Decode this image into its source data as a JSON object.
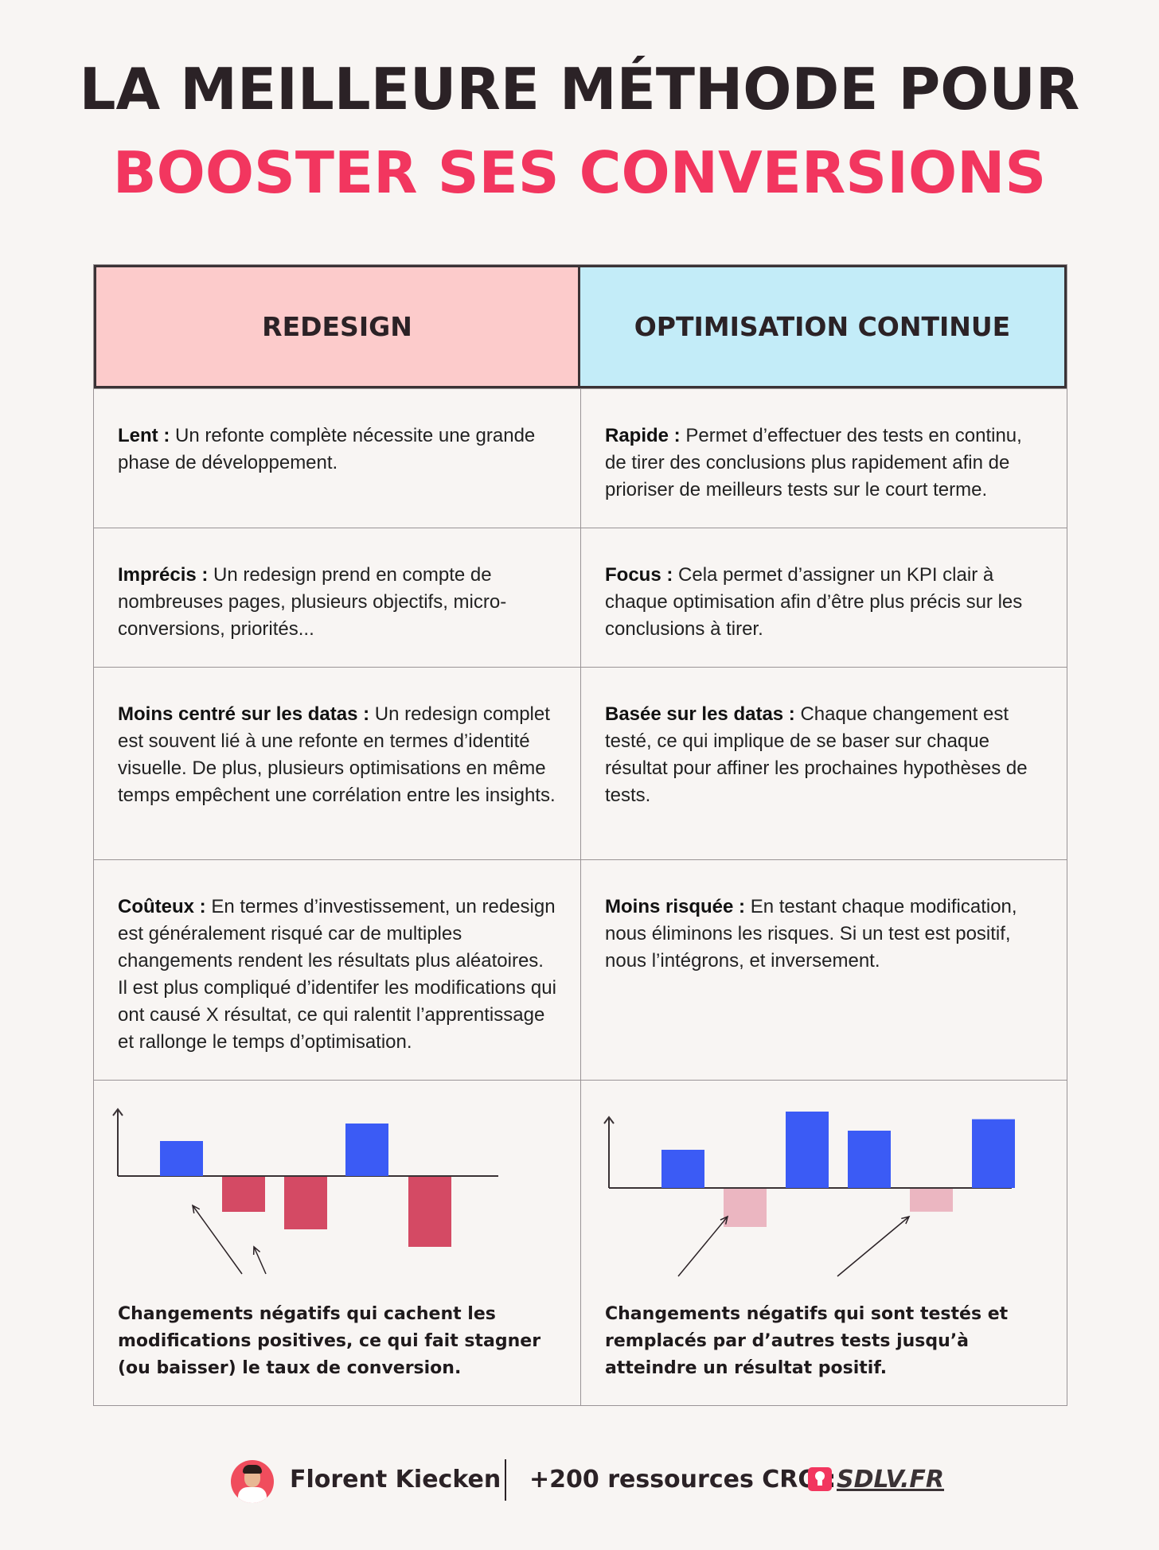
{
  "title": {
    "line1": "LA MEILLEURE MÉTHODE POUR",
    "line2": "BOOSTER SES CONVERSIONS"
  },
  "colors": {
    "accent": "#f2365f",
    "header_left_bg": "#fccbcb",
    "header_right_bg": "#c3ecf8",
    "positive_bar": "#3b5bf5",
    "negative_bar_redesign": "#d44a64",
    "negative_bar_optimisation": "#ebb6c1"
  },
  "table": {
    "headers": [
      "REDESIGN",
      "OPTIMISATION CONTINUE"
    ],
    "rows": [
      {
        "left": {
          "label": "Lent :",
          "text": " Un refonte complète nécessite une grande phase de développement."
        },
        "right": {
          "label": "Rapide :",
          "text": " Permet d’effectuer des tests en continu, de tirer des conclusions plus rapidement afin de prioriser de meilleurs tests sur le court terme."
        }
      },
      {
        "left": {
          "label": "Imprécis :",
          "text": " Un redesign prend en compte de nombreuses pages, plusieurs objectifs, micro-conversions, priorités..."
        },
        "right": {
          "label": "Focus :",
          "text": " Cela permet d’assigner un KPI clair à chaque optimisation afin d’être plus précis sur les conclusions à tirer."
        }
      },
      {
        "left": {
          "label": "Moins centré sur les datas :",
          "text": " Un redesign complet est souvent lié à une refonte en termes d’identité visuelle. De plus, plusieurs optimisations en même temps empêchent une corrélation entre les insights."
        },
        "right": {
          "label": "Basée sur les datas :",
          "text": " Chaque changement est testé, ce qui implique de se baser sur chaque résultat pour affiner les prochaines hypothèses de tests."
        }
      },
      {
        "left": {
          "label": "Coûteux :",
          "text": " En termes d’investissement, un redesign est généralement risqué car de multiples changements rendent les résultats plus aléatoires. Il est plus compliqué d’identifer les modifications qui ont causé X résultat, ce qui ralentit l’apprentissage et rallonge le temps d’optimisation."
        },
        "right": {
          "label": "Moins risquée :",
          "text": " En testant chaque modification, nous éliminons les risques. Si un test est positif, nous l’intégrons, et inversement."
        }
      }
    ]
  },
  "chart_data": [
    {
      "type": "bar",
      "values": [
        1,
        -1,
        -1.5,
        1.5,
        -2
      ],
      "ylim": [
        -2.2,
        2
      ],
      "grid": false,
      "caption": "Changements négatifs qui cachent les modifications positives, ce qui fait stagner (ou baisser) le taux de conversion."
    },
    {
      "type": "bar",
      "values": [
        1,
        -1,
        2,
        1.5,
        -0.6,
        1.8
      ],
      "ylim": [
        -1.5,
        2.1
      ],
      "grid": false,
      "caption": "Changements négatifs qui sont testés et remplacés par d’autres tests jusqu’à atteindre un résultat positif."
    }
  ],
  "footer": {
    "name": "Florent Kiecken",
    "resources": "+200 ressources CRO :",
    "site": "SDLV.FR",
    "logo_icon": "lightbulb-icon"
  }
}
